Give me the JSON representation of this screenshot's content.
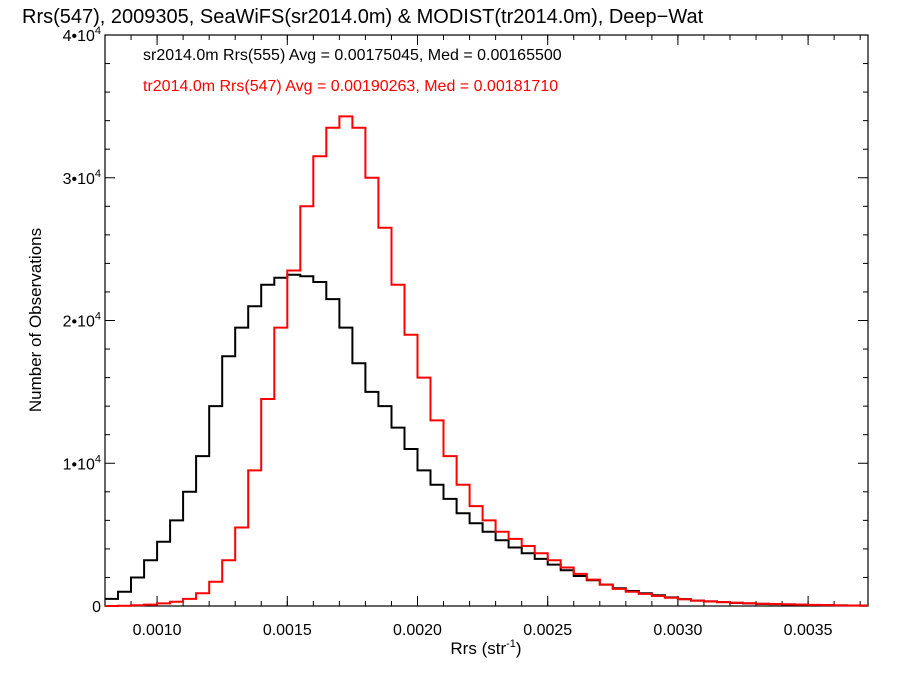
{
  "chart_data": {
    "type": "line",
    "title": "Rrs(547), 2009305, SeaWiFS(sr2014.0m) & MODIST(tr2014.0m), Deep−Wat",
    "xlabel": "Rrs (str",
    "xlabel_sup": "-1",
    "xlabel_suffix": ")",
    "ylabel": "Number of Observations",
    "xlim": [
      0.0008,
      0.00373
    ],
    "ylim": [
      0,
      40000
    ],
    "x_ticks": [
      {
        "value": 0.001,
        "label": "0.0010"
      },
      {
        "value": 0.0015,
        "label": "0.0015"
      },
      {
        "value": 0.002,
        "label": "0.0020"
      },
      {
        "value": 0.0025,
        "label": "0.0025"
      },
      {
        "value": 0.003,
        "label": "0.0030"
      },
      {
        "value": 0.0035,
        "label": "0.0035"
      }
    ],
    "y_ticks": [
      {
        "value": 0,
        "label": "0",
        "sup": ""
      },
      {
        "value": 10000,
        "label": "1•10",
        "sup": "4"
      },
      {
        "value": 20000,
        "label": "2•10",
        "sup": "4"
      },
      {
        "value": 30000,
        "label": "3•10",
        "sup": "4"
      },
      {
        "value": 40000,
        "label": "4•10",
        "sup": "4"
      }
    ],
    "legend_position": "top-left",
    "series": [
      {
        "name": "sr2014.0m Rrs(555) Avg = 0.00175045, Med = 0.00165500",
        "color": "#000000",
        "x": [
          0.0008,
          0.00085,
          0.0009,
          0.00095,
          0.001,
          0.00105,
          0.0011,
          0.00115,
          0.0012,
          0.00125,
          0.0013,
          0.00135,
          0.0014,
          0.00145,
          0.0015,
          0.00155,
          0.0016,
          0.00165,
          0.0017,
          0.00175,
          0.0018,
          0.00185,
          0.0019,
          0.00195,
          0.002,
          0.00205,
          0.0021,
          0.00215,
          0.0022,
          0.00225,
          0.0023,
          0.00235,
          0.0024,
          0.00245,
          0.0025,
          0.00255,
          0.0026,
          0.00265,
          0.0027,
          0.00275,
          0.0028,
          0.00285,
          0.0029,
          0.00295,
          0.003,
          0.00305,
          0.0031,
          0.00315,
          0.0032,
          0.00325,
          0.0033,
          0.00335,
          0.0034,
          0.00345,
          0.0035,
          0.00355,
          0.0036,
          0.00365,
          0.0037
        ],
        "y": [
          500,
          1000,
          2000,
          3200,
          4500,
          6000,
          8000,
          10500,
          14000,
          17500,
          19500,
          21000,
          22500,
          23000,
          23200,
          23100,
          22700,
          21500,
          19500,
          17000,
          15000,
          14000,
          12500,
          11000,
          9500,
          8500,
          7500,
          6500,
          5800,
          5200,
          4600,
          4100,
          3700,
          3300,
          2900,
          2500,
          2100,
          1800,
          1500,
          1250,
          1050,
          900,
          750,
          600,
          480,
          380,
          320,
          270,
          220,
          180,
          150,
          130,
          110,
          90,
          70,
          60,
          45,
          35,
          25
        ]
      },
      {
        "name": "tr2014.0m Rrs(547) Avg = 0.00190263, Med = 0.00181710",
        "color": "#ff0000",
        "x": [
          0.0008,
          0.00085,
          0.0009,
          0.00095,
          0.001,
          0.00105,
          0.0011,
          0.00115,
          0.0012,
          0.00125,
          0.0013,
          0.00135,
          0.0014,
          0.00145,
          0.0015,
          0.00155,
          0.0016,
          0.00165,
          0.0017,
          0.00175,
          0.0018,
          0.00185,
          0.0019,
          0.00195,
          0.002,
          0.00205,
          0.0021,
          0.00215,
          0.0022,
          0.00225,
          0.0023,
          0.00235,
          0.0024,
          0.00245,
          0.0025,
          0.00255,
          0.0026,
          0.00265,
          0.0027,
          0.00275,
          0.0028,
          0.00285,
          0.0029,
          0.00295,
          0.003,
          0.00305,
          0.0031,
          0.00315,
          0.0032,
          0.00325,
          0.0033,
          0.00335,
          0.0034,
          0.00345,
          0.0035,
          0.00355,
          0.0036,
          0.00365,
          0.0037
        ],
        "y": [
          0,
          20,
          50,
          100,
          180,
          300,
          500,
          900,
          1700,
          3200,
          5500,
          9500,
          14500,
          19500,
          23500,
          28000,
          31500,
          33500,
          34300,
          33500,
          30000,
          26500,
          22500,
          19000,
          16000,
          13000,
          10500,
          8500,
          7000,
          6000,
          5200,
          4700,
          4200,
          3700,
          3200,
          2700,
          2250,
          1850,
          1500,
          1200,
          1000,
          850,
          700,
          580,
          470,
          380,
          320,
          270,
          230,
          190,
          160,
          140,
          115,
          95,
          75,
          60,
          45,
          35,
          25
        ]
      }
    ]
  }
}
